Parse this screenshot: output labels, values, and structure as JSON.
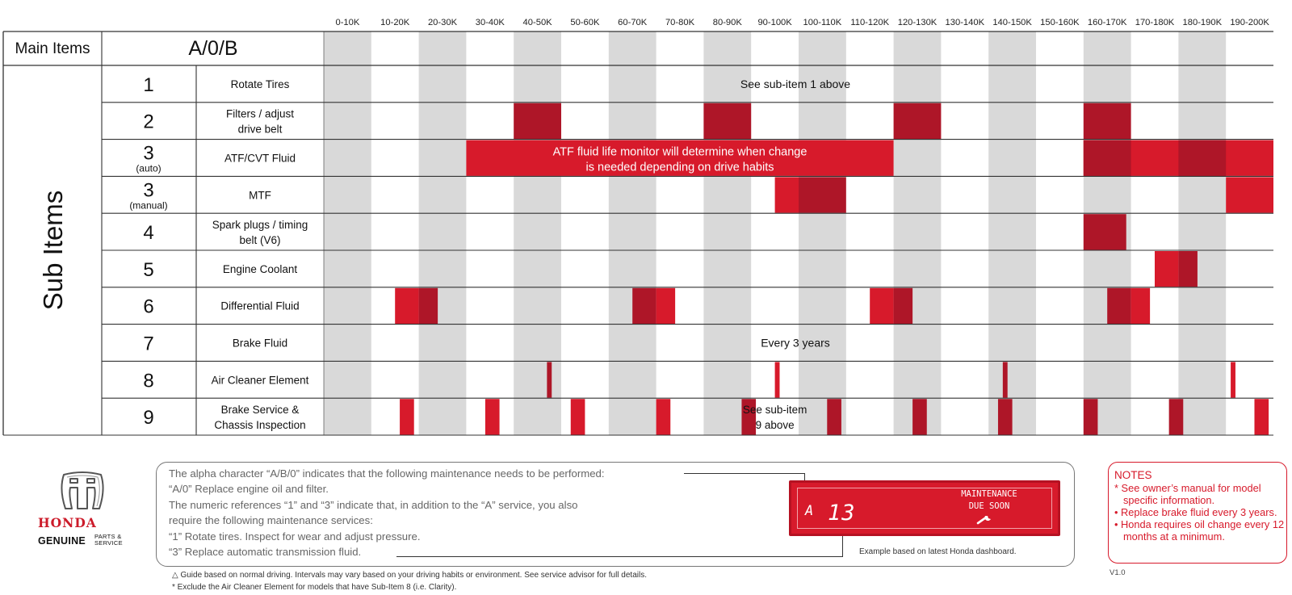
{
  "chart_data": {
    "type": "table",
    "intervals": [
      "0-10K",
      "10-20K",
      "20-30K",
      "30-40K",
      "40-50K",
      "50-60K",
      "60-70K",
      "70-80K",
      "80-90K",
      "90-100K",
      "100-110K",
      "110-120K",
      "120-130K",
      "130-140K",
      "140-150K",
      "150-160K",
      "160-170K",
      "170-180K",
      "180-190K",
      "190-200K"
    ],
    "main_items": {
      "label": "Main Items",
      "value": "A/0/B"
    },
    "sub_items_label": "Sub Items",
    "rows": [
      {
        "num": "1",
        "sub": "",
        "desc": [
          "Rotate Tires"
        ],
        "text": "See sub-item 1 above",
        "marks": []
      },
      {
        "num": "2",
        "sub": "",
        "desc": [
          "Filters / adjust",
          "drive belt"
        ],
        "marks": [
          [
            40,
            50,
            "dark"
          ],
          [
            80,
            90,
            "dark"
          ],
          [
            120,
            130,
            "dark"
          ],
          [
            160,
            170,
            "dark"
          ]
        ]
      },
      {
        "num": "3",
        "sub": "(auto)",
        "desc": [
          "ATF/CVT Fluid"
        ],
        "text_lines": [
          "ATF fluid life monitor will determine when change",
          "is needed depending on drive habits"
        ],
        "marks": [
          [
            30,
            120,
            "bright"
          ],
          [
            160,
            200,
            "bright"
          ],
          [
            160,
            170,
            "dark"
          ],
          [
            180,
            190,
            "dark"
          ]
        ]
      },
      {
        "num": "3",
        "sub": "(manual)",
        "desc": [
          "MTF"
        ],
        "marks": [
          [
            95,
            100,
            "bright"
          ],
          [
            100,
            110,
            "dark"
          ],
          [
            190,
            200,
            "bright"
          ]
        ]
      },
      {
        "num": "4",
        "sub": "",
        "desc": [
          "Spark plugs / timing",
          "belt (V6)"
        ],
        "marks": [
          [
            160,
            169,
            "dark"
          ]
        ]
      },
      {
        "num": "5",
        "sub": "",
        "desc": [
          "Engine Coolant"
        ],
        "marks": [
          [
            175,
            180,
            "bright"
          ],
          [
            180,
            184,
            "dark"
          ]
        ]
      },
      {
        "num": "6",
        "sub": "",
        "desc": [
          "Differential Fluid"
        ],
        "marks": [
          [
            15,
            20,
            "bright"
          ],
          [
            20,
            24,
            "dark"
          ],
          [
            65,
            70,
            "dark"
          ],
          [
            70,
            74,
            "bright"
          ],
          [
            115,
            120,
            "bright"
          ],
          [
            120,
            124,
            "dark"
          ],
          [
            165,
            170,
            "dark"
          ],
          [
            170,
            174,
            "bright"
          ]
        ]
      },
      {
        "num": "7",
        "sub": "",
        "desc": [
          "Brake Fluid"
        ],
        "text": "Every 3 years",
        "marks": []
      },
      {
        "num": "8",
        "sub": "",
        "desc": [
          "Air Cleaner Element"
        ],
        "marks": [
          [
            47,
            48,
            "dark"
          ],
          [
            95,
            96,
            "bright"
          ],
          [
            143,
            144,
            "dark"
          ],
          [
            191,
            192,
            "bright"
          ]
        ]
      },
      {
        "num": "9",
        "sub": "",
        "desc": [
          "Brake Service &",
          "Chassis Inspection"
        ],
        "text_lines": [
          "See sub-item",
          "9 above"
        ],
        "marks": [
          [
            16,
            19,
            "bright"
          ],
          [
            34,
            37,
            "bright"
          ],
          [
            52,
            55,
            "bright"
          ],
          [
            70,
            73,
            "bright"
          ],
          [
            88,
            91,
            "dark"
          ],
          [
            106,
            109,
            "dark"
          ],
          [
            124,
            127,
            "dark"
          ],
          [
            142,
            145,
            "dark"
          ],
          [
            160,
            163,
            "dark"
          ],
          [
            178,
            181,
            "dark"
          ],
          [
            196,
            199,
            "bright"
          ]
        ]
      }
    ],
    "colors": {
      "dark": "#ae1628",
      "bright": "#d71a2b",
      "shade": "#d9d9d9",
      "line": "#333333"
    }
  },
  "legend": {
    "lines": [
      "The alpha character “A/B/0” indicates that the following maintenance needs to be performed:",
      "“A/0” Replace engine oil and filter.",
      "The numeric references “1” and “3” indicate that, in addition to the “A” service, you also",
      "require the following maintenance services:",
      "“1” Rotate tires. Inspect for wear and adjust pressure.",
      "“3” Replace automatic transmission fluid."
    ],
    "dashboard": {
      "letter": "A",
      "number": "13",
      "message": [
        "MAINTENANCE",
        "DUE SOON"
      ],
      "icon": "wrench-icon",
      "caption": "Example based on latest Honda dashboard."
    }
  },
  "notes": {
    "title": "NOTES",
    "items": [
      "* See owner’s manual for model specific information.",
      "• Replace brake fluid every 3 years.",
      "• Honda requires oil change every 12 months at a minimum."
    ]
  },
  "version": "V1.0",
  "footnotes": [
    "△ Guide based on normal driving. Intervals may vary based on your driving habits or environment. See service advisor for full details.",
    "* Exclude the Air Cleaner Element for models that have Sub-Item 8 (i.e. Clarity)."
  ],
  "brand": {
    "name": "HONDA",
    "genuine": "GENUINE",
    "parts_service": [
      "PARTS &",
      "SERVICE"
    ]
  }
}
